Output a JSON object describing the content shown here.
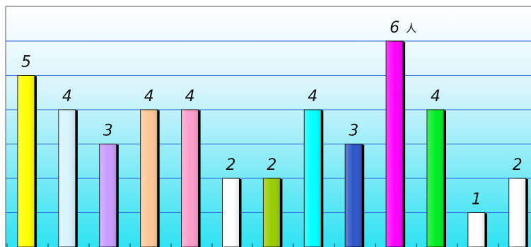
{
  "chart_data": {
    "type": "bar",
    "categories": [
      "",
      "",
      "",
      "",
      "",
      "",
      "",
      "",
      "",
      "",
      "",
      "",
      ""
    ],
    "values": [
      5,
      4,
      3,
      4,
      4,
      2,
      2,
      4,
      3,
      6,
      4,
      1,
      2
    ],
    "colors": [
      "#ffff00",
      "#d8f4ff",
      "#c89cff",
      "#ffc896",
      "#ff9ccc",
      "#ffffff",
      "#99cc00",
      "#00ffff",
      "#2d55c8",
      "#ff00ff",
      "#00ee22",
      "#ffffff",
      "#ffffff"
    ],
    "unit": "人",
    "unit_at_index": 9,
    "ylim": [
      0,
      6
    ],
    "grid": true,
    "legend": "none",
    "title": "",
    "xlabel": "",
    "ylabel": ""
  }
}
